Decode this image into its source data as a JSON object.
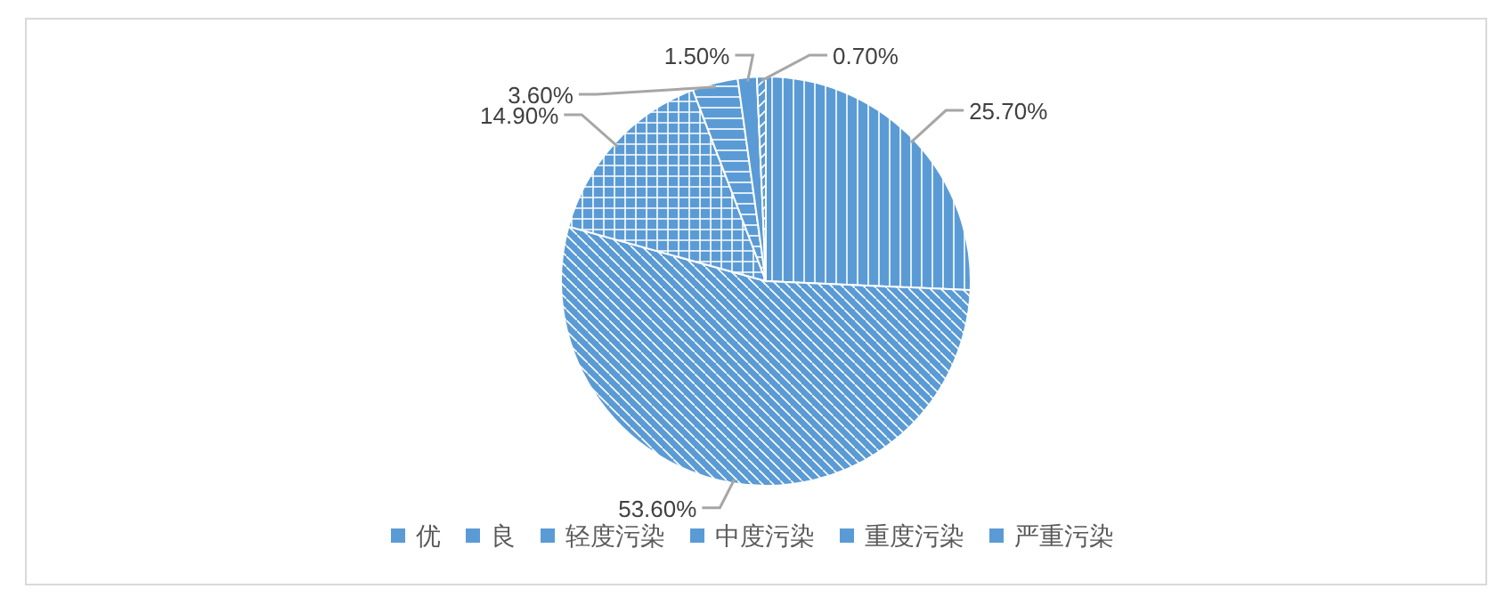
{
  "chart_data": {
    "type": "pie",
    "categories": [
      "优",
      "良",
      "轻度污染",
      "中度污染",
      "重度污染",
      "严重污染"
    ],
    "values": [
      25.7,
      53.6,
      14.9,
      3.6,
      1.5,
      0.7
    ],
    "value_labels": [
      "25.70%",
      "53.60%",
      "14.90%",
      "3.60%",
      "1.50%",
      "0.70%"
    ],
    "colors": [
      "#5b9bd5",
      "#5b9bd5",
      "#5b9bd5",
      "#5b9bd5",
      "#5b9bd5",
      "#5b9bd5"
    ],
    "legend": "bottom"
  }
}
